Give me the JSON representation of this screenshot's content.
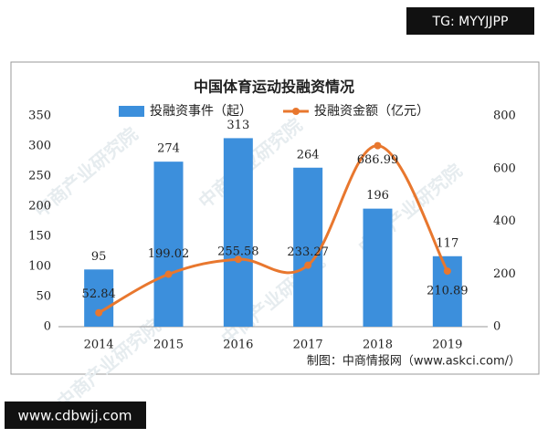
{
  "chart_data": {
    "type": "combo",
    "title": "中国体育运动投融资情况",
    "categories": [
      "2014",
      "2015",
      "2016",
      "2017",
      "2018",
      "2019"
    ],
    "series": [
      {
        "name": "投融资事件（起）",
        "type": "bar",
        "color": "#3c8fdc",
        "values": [
          95,
          274,
          313,
          264,
          196,
          117
        ]
      },
      {
        "name": "投融资金额（亿元）",
        "type": "line",
        "axis": "y2",
        "color": "#e8772e",
        "values": [
          52.84,
          199.02,
          255.58,
          233.27,
          686.99,
          210.89
        ]
      }
    ],
    "ylim": [
      0,
      350
    ],
    "yticks": [
      0,
      50,
      100,
      150,
      200,
      250,
      300,
      350
    ],
    "y2lim": [
      0,
      800
    ],
    "y2ticks": [
      0,
      200,
      400,
      600,
      800
    ],
    "source": "制图：中商情报网（www.askci.com/）",
    "watermark": "中商产业研究院"
  },
  "overlay": {
    "top_right": "TG: MYYJJPP",
    "bottom_left": "www.cdbwjj.com"
  }
}
